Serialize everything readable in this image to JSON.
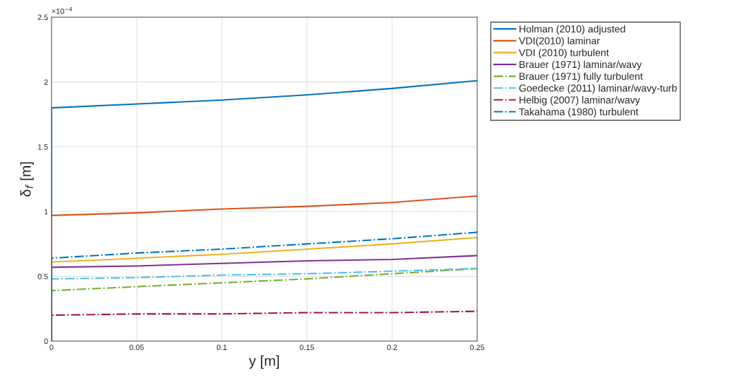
{
  "chart_data": {
    "type": "line",
    "xlabel": "y [m]",
    "ylabel": "δ$_{f}$ [m]",
    "x": [
      0,
      0,
      0.05,
      0.1,
      0.15,
      0.2,
      0.25
    ],
    "xlim": [
      0,
      0.25
    ],
    "xticks": [
      0,
      0.05,
      0.1,
      0.15,
      0.2,
      0.25
    ],
    "ylim": [
      0,
      2.5
    ],
    "yticks": [
      0,
      0.5,
      1,
      1.5,
      2,
      2.5
    ],
    "annotations": [
      "×10$^{−4}$"
    ],
    "grid": true,
    "legend": "right",
    "series": [
      {
        "name": "Holman (2010) adjusted",
        "color": "#0072bd",
        "line_style": "solid",
        "values": [
          0,
          1.8,
          1.83,
          1.86,
          1.9,
          1.95,
          2.01
        ]
      },
      {
        "name": "VDI(2010) laminar",
        "color": "#d95319",
        "line_style": "solid",
        "values": [
          0,
          0.97,
          0.99,
          1.02,
          1.04,
          1.07,
          1.12
        ]
      },
      {
        "name": "VDI (2010) turbulent",
        "color": "#edb120",
        "line_style": "solid",
        "values": [
          0,
          0.61,
          0.64,
          0.67,
          0.71,
          0.75,
          0.8
        ]
      },
      {
        "name": "Brauer (1971) laminar/wavy",
        "color": "#7e2f8e",
        "line_style": "solid",
        "values": [
          0,
          0.57,
          0.58,
          0.6,
          0.62,
          0.63,
          0.66
        ]
      },
      {
        "name": "Brauer (1971) fully turbulent",
        "color": "#77ac30",
        "line_style": "dashdot",
        "values": [
          0,
          0.39,
          0.42,
          0.45,
          0.48,
          0.52,
          0.56
        ]
      },
      {
        "name": "Goedecke (2011) laminar/wavy-turb",
        "color": "#4dbeee",
        "line_style": "dashdot",
        "values": [
          0,
          0.48,
          0.49,
          0.51,
          0.52,
          0.54,
          0.56
        ]
      },
      {
        "name": "Helbig (2007) laminar/wavy",
        "color": "#a2142f",
        "line_style": "dashdot",
        "values": [
          0,
          0.2,
          0.21,
          0.21,
          0.22,
          0.22,
          0.23
        ]
      },
      {
        "name": "Takahama (1980) turbulent",
        "color": "#0072bd",
        "line_style": "dashdot",
        "values": [
          0,
          0.64,
          0.68,
          0.71,
          0.75,
          0.79,
          0.84
        ]
      }
    ]
  }
}
